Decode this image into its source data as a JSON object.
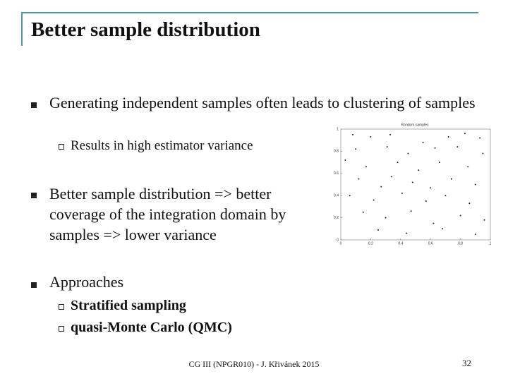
{
  "header": {
    "title": "Better sample distribution"
  },
  "bullets": [
    {
      "text": "Generating independent samples often leads to clustering of samples",
      "sub": [
        "Results in high estimator variance"
      ]
    },
    {
      "text": "Better sample distribution => better coverage of the integration domain by samples => lower variance",
      "sub": []
    },
    {
      "text": "Approaches",
      "sub": [
        "Stratified sampling",
        "quasi-Monte Carlo (QMC)"
      ]
    }
  ],
  "chart_data": {
    "type": "scatter",
    "title": "Random samples",
    "x": [
      0.08,
      0.2,
      0.33,
      0.55,
      0.72,
      0.83,
      0.93,
      0.1,
      0.31,
      0.45,
      0.63,
      0.78,
      0.95,
      0.03,
      0.17,
      0.38,
      0.52,
      0.66,
      0.85,
      0.12,
      0.27,
      0.34,
      0.48,
      0.6,
      0.74,
      0.9,
      0.06,
      0.22,
      0.41,
      0.57,
      0.7,
      0.86,
      0.15,
      0.3,
      0.47,
      0.62,
      0.8,
      0.96,
      0.25,
      0.44,
      0.68,
      0.9
    ],
    "y": [
      0.95,
      0.93,
      0.95,
      0.88,
      0.93,
      0.96,
      0.92,
      0.82,
      0.84,
      0.78,
      0.83,
      0.84,
      0.78,
      0.72,
      0.66,
      0.7,
      0.63,
      0.7,
      0.66,
      0.55,
      0.48,
      0.57,
      0.52,
      0.47,
      0.55,
      0.5,
      0.4,
      0.36,
      0.42,
      0.35,
      0.4,
      0.33,
      0.25,
      0.2,
      0.26,
      0.15,
      0.22,
      0.18,
      0.09,
      0.06,
      0.1,
      0.05
    ],
    "color": "#222222",
    "xlim": [
      0,
      1
    ],
    "ylim": [
      0,
      1
    ],
    "xticks": [
      0,
      0.2,
      0.4,
      0.6,
      0.8,
      1
    ],
    "yticks": [
      0,
      0.2,
      0.4,
      0.6,
      0.8,
      1
    ]
  },
  "footer": {
    "text": "CG III (NPGR010) - J. Křivánek 2015",
    "page": "32"
  }
}
